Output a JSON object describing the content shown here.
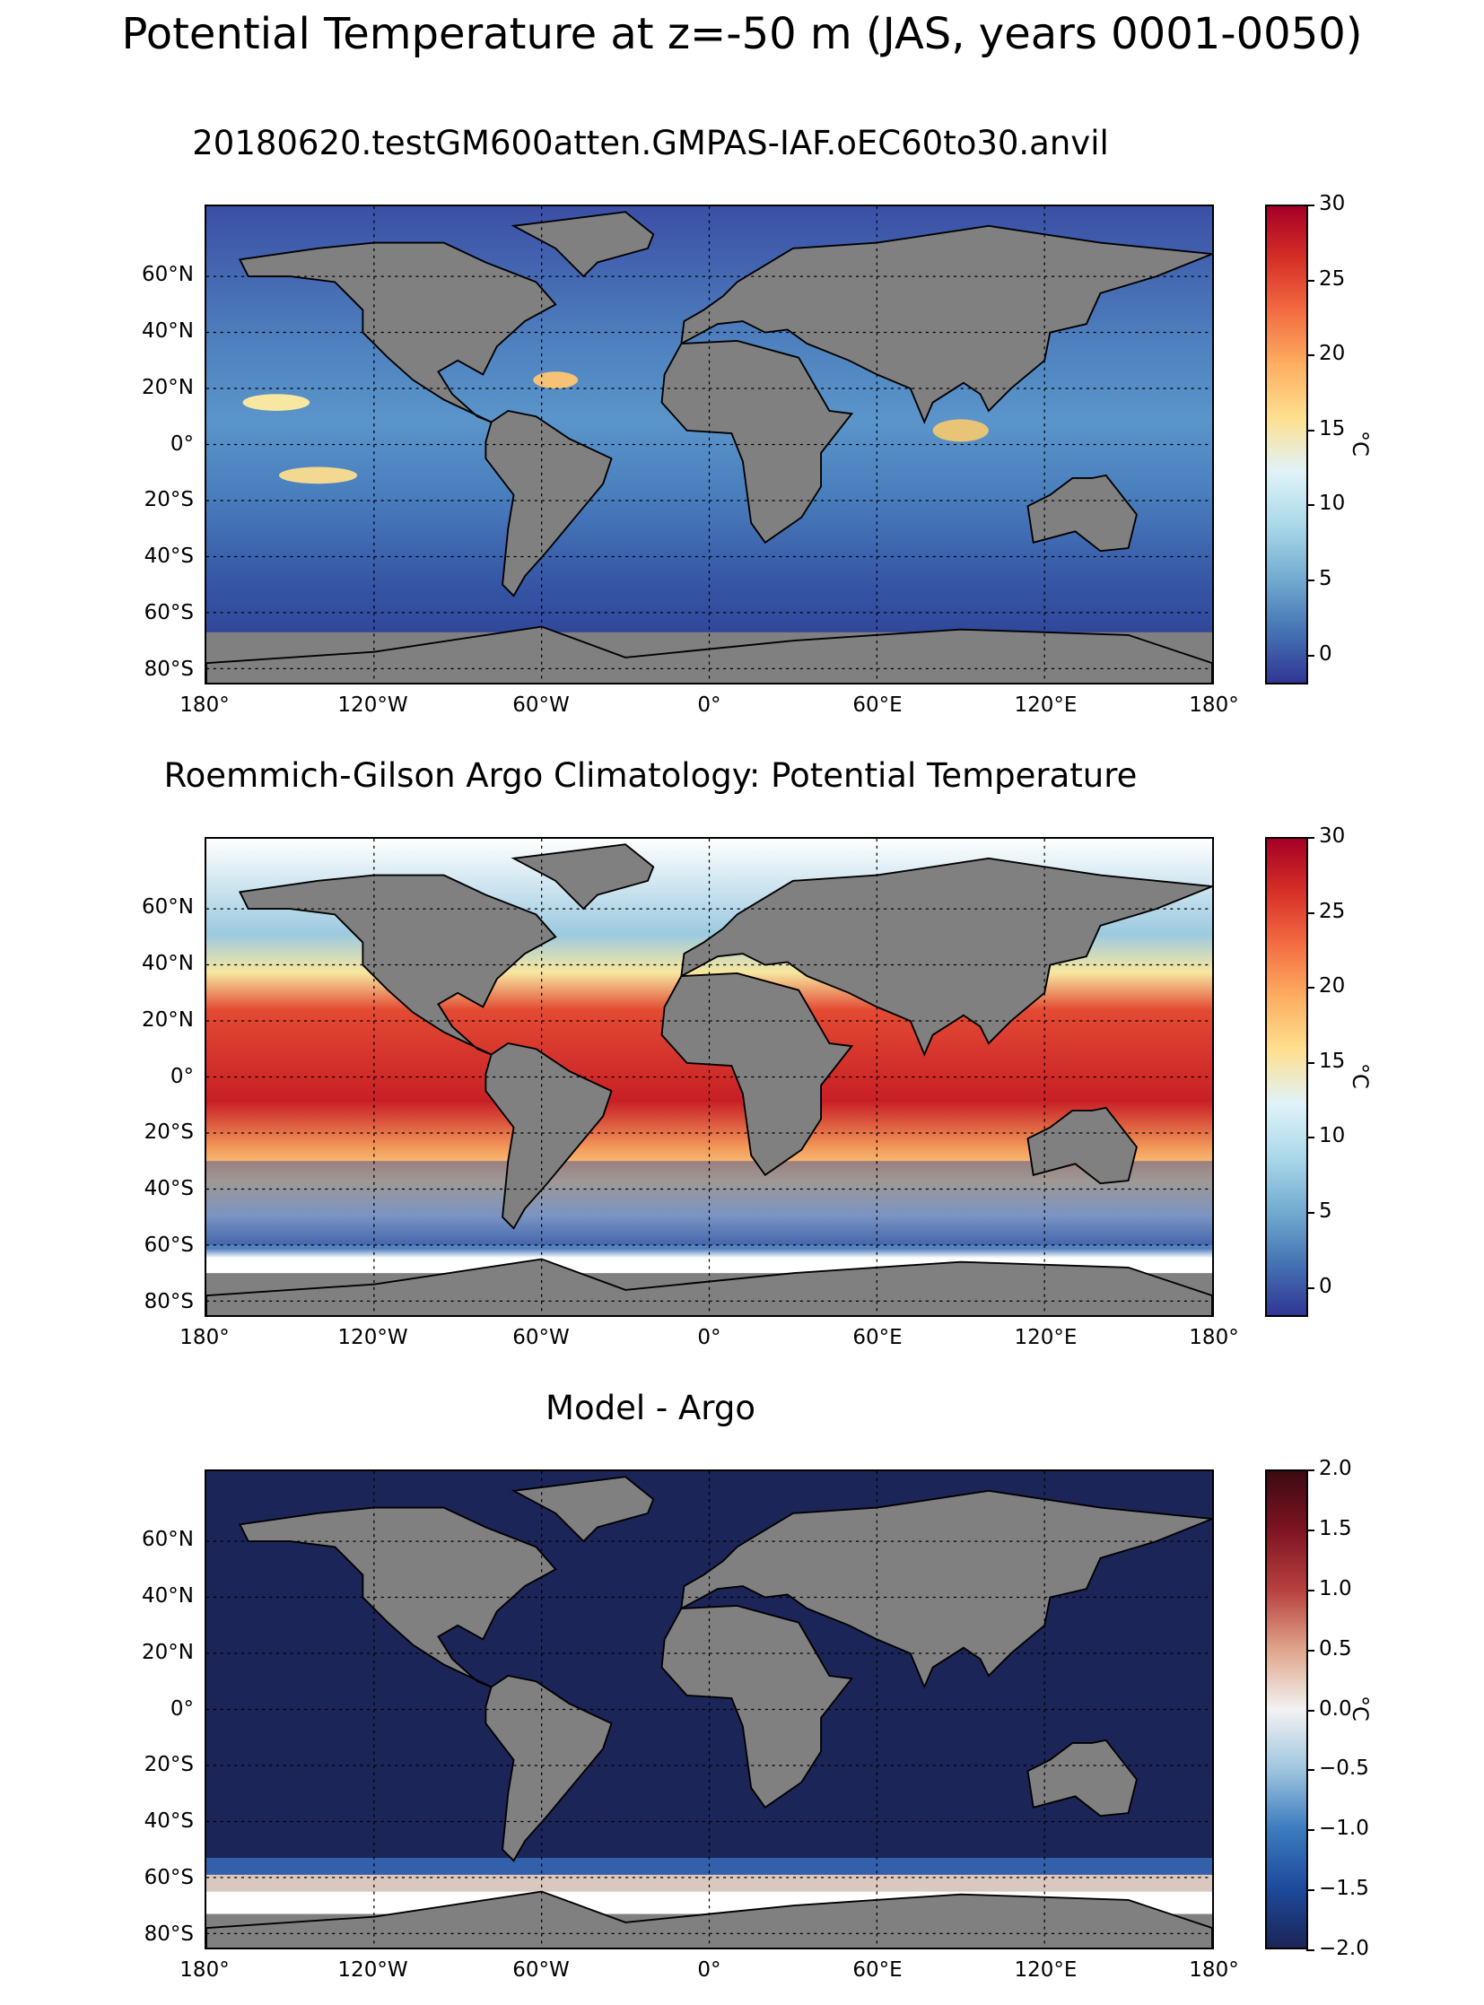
{
  "figure_title": "Potential Temperature at z=-50 m (JAS, years 0001-0050)",
  "panels": [
    {
      "title": "20180620.testGM600atten.GMPAS-IAF.oEC60to30.anvil",
      "colormap": "RdYlBu_r",
      "colorbar": {
        "ticks": [
          "30",
          "25",
          "20",
          "15",
          "10",
          "5",
          "0"
        ],
        "unit": "°C",
        "range": [
          -2,
          30
        ]
      },
      "lat_labels": [
        "60°N",
        "40°N",
        "20°N",
        "0°",
        "20°S",
        "40°S",
        "60°S",
        "80°S"
      ],
      "lon_labels": [
        "180°",
        "120°W",
        "60°W",
        "0°",
        "60°E",
        "120°E",
        "180°"
      ]
    },
    {
      "title": "Roemmich-Gilson Argo Climatology: Potential Temperature",
      "colormap": "RdYlBu_r",
      "colorbar": {
        "ticks": [
          "30",
          "25",
          "20",
          "15",
          "10",
          "5",
          "0"
        ],
        "unit": "°C",
        "range": [
          -2,
          30
        ]
      },
      "lat_labels": [
        "60°N",
        "40°N",
        "20°N",
        "0°",
        "20°S",
        "40°S",
        "60°S",
        "80°S"
      ],
      "lon_labels": [
        "180°",
        "120°W",
        "60°W",
        "0°",
        "60°E",
        "120°E",
        "180°"
      ]
    },
    {
      "title": "Model - Argo",
      "colormap": "RdBu_r",
      "colorbar": {
        "ticks": [
          "2.0",
          "1.5",
          "1.0",
          "0.5",
          "0.0",
          "−0.5",
          "−1.0",
          "−1.5",
          "−2.0"
        ],
        "unit": "°C",
        "range": [
          -2,
          2
        ]
      },
      "lat_labels": [
        "60°N",
        "40°N",
        "20°N",
        "0°",
        "20°S",
        "40°S",
        "60°S",
        "80°S"
      ],
      "lon_labels": [
        "180°",
        "120°W",
        "60°W",
        "0°",
        "60°E",
        "120°E",
        "180°"
      ]
    }
  ],
  "colors": {
    "land": "#808080",
    "model_ocean": "#3f6fb5",
    "diff_ocean": "#1c2557"
  }
}
